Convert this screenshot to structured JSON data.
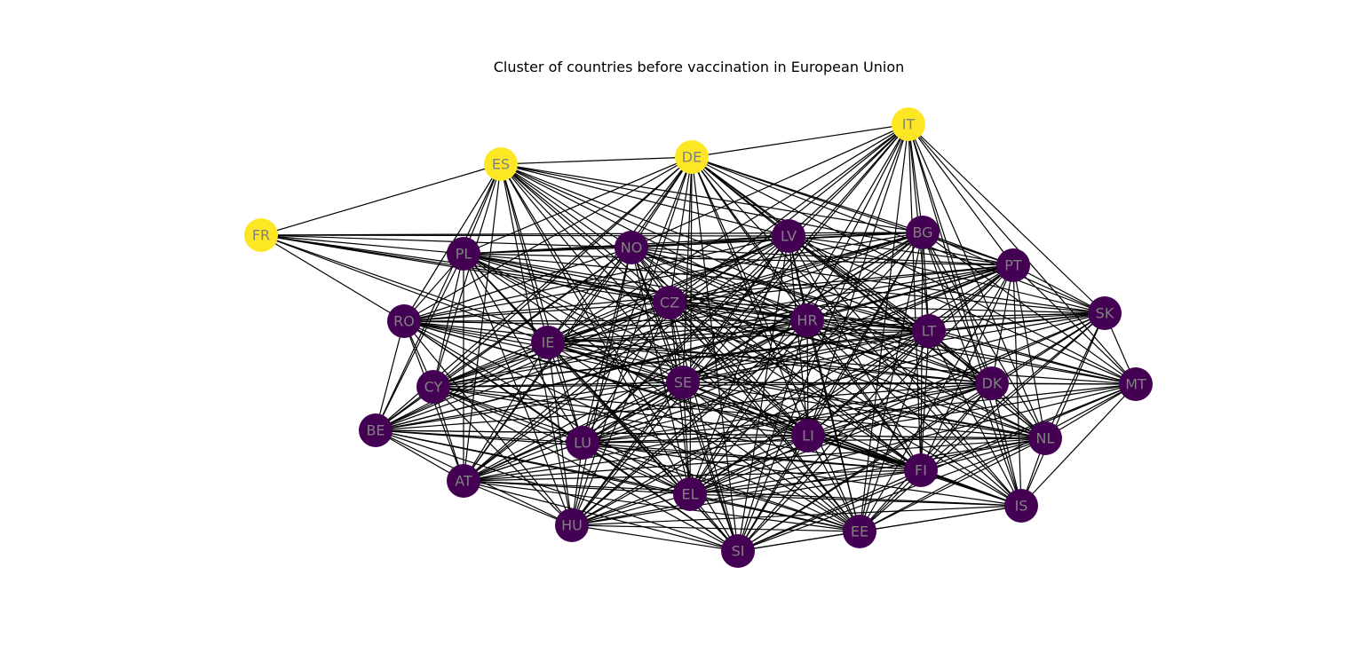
{
  "figure": {
    "title": "Cluster of countries before vaccination in European Union"
  },
  "graph": {
    "colors": {
      "cluster_yellow": "#fde725",
      "cluster_purple": "#440154",
      "label_gray": "#808080",
      "edge": "#000000"
    },
    "nodes": [
      {
        "id": "IT",
        "cluster": "yellow"
      },
      {
        "id": "DE",
        "cluster": "yellow"
      },
      {
        "id": "ES",
        "cluster": "yellow"
      },
      {
        "id": "FR",
        "cluster": "yellow"
      },
      {
        "id": "PL",
        "cluster": "purple"
      },
      {
        "id": "NO",
        "cluster": "purple"
      },
      {
        "id": "LV",
        "cluster": "purple"
      },
      {
        "id": "BG",
        "cluster": "purple"
      },
      {
        "id": "PT",
        "cluster": "purple"
      },
      {
        "id": "SK",
        "cluster": "purple"
      },
      {
        "id": "CZ",
        "cluster": "purple"
      },
      {
        "id": "HR",
        "cluster": "purple"
      },
      {
        "id": "LT",
        "cluster": "purple"
      },
      {
        "id": "RO",
        "cluster": "purple"
      },
      {
        "id": "IE",
        "cluster": "purple"
      },
      {
        "id": "CY",
        "cluster": "purple"
      },
      {
        "id": "SE",
        "cluster": "purple"
      },
      {
        "id": "DK",
        "cluster": "purple"
      },
      {
        "id": "MT",
        "cluster": "purple"
      },
      {
        "id": "BE",
        "cluster": "purple"
      },
      {
        "id": "LU",
        "cluster": "purple"
      },
      {
        "id": "LI",
        "cluster": "purple"
      },
      {
        "id": "NL",
        "cluster": "purple"
      },
      {
        "id": "FI",
        "cluster": "purple"
      },
      {
        "id": "AT",
        "cluster": "purple"
      },
      {
        "id": "EL",
        "cluster": "purple"
      },
      {
        "id": "IS",
        "cluster": "purple"
      },
      {
        "id": "HU",
        "cluster": "purple"
      },
      {
        "id": "EE",
        "cluster": "purple"
      },
      {
        "id": "SI",
        "cluster": "purple"
      }
    ]
  }
}
